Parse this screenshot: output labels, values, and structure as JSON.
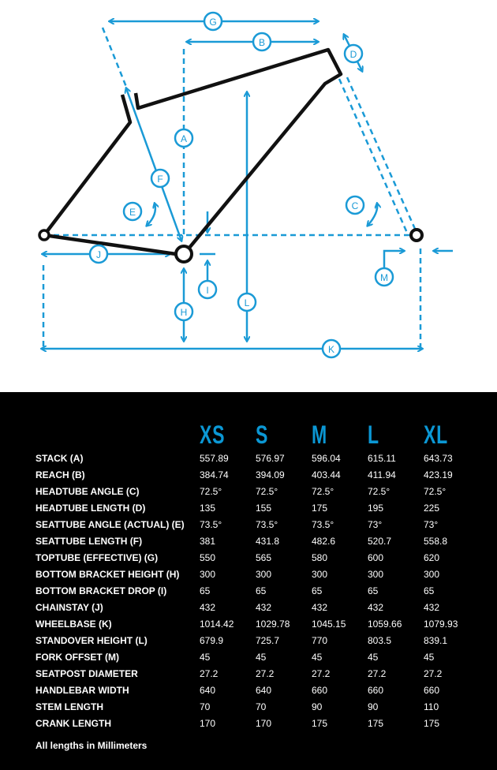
{
  "colors": {
    "accent": "#1a9ad6",
    "frame": "#111111",
    "panel": "#000000",
    "text": "#ffffff"
  },
  "diagram": {
    "labels": {
      "A": "A",
      "B": "B",
      "C": "C",
      "D": "D",
      "E": "E",
      "F": "F",
      "G": "G",
      "H": "H",
      "I": "I",
      "J": "J",
      "K": "K",
      "L": "L",
      "M": "M"
    }
  },
  "table": {
    "sizes": [
      "XS",
      "S",
      "M",
      "L",
      "XL"
    ],
    "rows": [
      {
        "label": "STACK (A)",
        "values": [
          "557.89",
          "576.97",
          "596.04",
          "615.11",
          "643.73"
        ]
      },
      {
        "label": "REACH (B)",
        "values": [
          "384.74",
          "394.09",
          "403.44",
          "411.94",
          "423.19"
        ]
      },
      {
        "label": "HEADTUBE ANGLE (C)",
        "values": [
          "72.5°",
          "72.5°",
          "72.5°",
          "72.5°",
          "72.5°"
        ]
      },
      {
        "label": "HEADTUBE LENGTH (D)",
        "values": [
          "135",
          "155",
          "175",
          "195",
          "225"
        ]
      },
      {
        "label": "SEATTUBE ANGLE (ACTUAL) (E)",
        "values": [
          "73.5°",
          "73.5°",
          "73.5°",
          "73°",
          "73°"
        ]
      },
      {
        "label": "SEATTUBE LENGTH (F)",
        "values": [
          "381",
          "431.8",
          "482.6",
          "520.7",
          "558.8"
        ]
      },
      {
        "label": "TOPTUBE (EFFECTIVE) (G)",
        "values": [
          "550",
          "565",
          "580",
          "600",
          "620"
        ]
      },
      {
        "label": "BOTTOM BRACKET HEIGHT (H)",
        "values": [
          "300",
          "300",
          "300",
          "300",
          "300"
        ]
      },
      {
        "label": "BOTTOM BRACKET DROP (I)",
        "values": [
          "65",
          "65",
          "65",
          "65",
          "65"
        ]
      },
      {
        "label": "CHAINSTAY (J)",
        "values": [
          "432",
          "432",
          "432",
          "432",
          "432"
        ]
      },
      {
        "label": "WHEELBASE (K)",
        "values": [
          "1014.42",
          "1029.78",
          "1045.15",
          "1059.66",
          "1079.93"
        ]
      },
      {
        "label": "STANDOVER HEIGHT (L)",
        "values": [
          "679.9",
          "725.7",
          "770",
          "803.5",
          "839.1"
        ]
      },
      {
        "label": "FORK OFFSET (M)",
        "values": [
          "45",
          "45",
          "45",
          "45",
          "45"
        ]
      },
      {
        "label": "SEATPOST DIAMETER",
        "values": [
          "27.2",
          "27.2",
          "27.2",
          "27.2",
          "27.2"
        ]
      },
      {
        "label": "HANDLEBAR WIDTH",
        "values": [
          "640",
          "640",
          "660",
          "660",
          "660"
        ]
      },
      {
        "label": "STEM LENGTH",
        "values": [
          "70",
          "70",
          "90",
          "90",
          "110"
        ]
      },
      {
        "label": "CRANK LENGTH",
        "values": [
          "170",
          "170",
          "175",
          "175",
          "175"
        ]
      }
    ],
    "footnote": "All lengths in Millimeters"
  }
}
